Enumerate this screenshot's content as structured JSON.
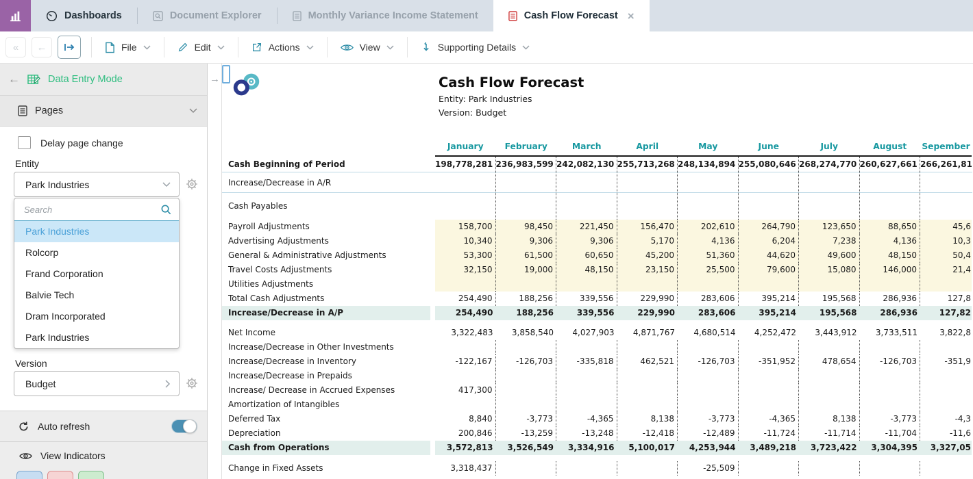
{
  "tab_bar": {
    "tabs": [
      {
        "label": "Dashboards",
        "icon": "gauge",
        "state": "normal"
      },
      {
        "label": "Document Explorer",
        "icon": "document-magnifier",
        "state": "disabled"
      },
      {
        "label": "Monthly Variance Income Statement",
        "icon": "document-lines",
        "state": "disabled"
      },
      {
        "label": "Cash Flow Forecast",
        "icon": "document-lines-red",
        "state": "active",
        "closable": true
      }
    ]
  },
  "toolbar": {
    "nav": {
      "first": "«",
      "back": "←",
      "forward": "→"
    },
    "menus": [
      {
        "label": "File",
        "icon": "page"
      },
      {
        "label": "Edit",
        "icon": "pencil"
      },
      {
        "label": "Actions",
        "icon": "square-arrow-out"
      },
      {
        "label": "View",
        "icon": "eye"
      },
      {
        "label": "Supporting Details",
        "icon": "arrow-down-hook"
      }
    ]
  },
  "sidebar": {
    "mode_label": "Data Entry Mode",
    "pages_label": "Pages",
    "delay_label": "Delay page change",
    "delay_checked": false,
    "entity_label": "Entity",
    "entity_value": "Park Industries",
    "search_placeholder": "Search",
    "entity_options": [
      {
        "label": "Park Industries",
        "selected": true
      },
      {
        "label": "Rolcorp",
        "selected": false
      },
      {
        "label": "Frand Corporation",
        "selected": false
      },
      {
        "label": "Balvie Tech",
        "selected": false
      },
      {
        "label": "Dram Incorporated",
        "selected": false
      },
      {
        "label": "Park Industries",
        "selected": false
      }
    ],
    "version_label": "Version",
    "version_value": "Budget",
    "auto_refresh_label": "Auto refresh",
    "auto_refresh_on": true,
    "view_indicators_label": "View Indicators"
  },
  "report": {
    "title": "Cash Flow Forecast",
    "entity_line": "Entity: Park Industries",
    "version_line": "Version: Budget",
    "months": [
      "January",
      "February",
      "March",
      "April",
      "May",
      "June",
      "July",
      "August",
      "Sepember"
    ],
    "rows": [
      {
        "label": "Cash Beginning of Period",
        "bold": true,
        "dotted": true,
        "bline": true,
        "h": 23,
        "values": [
          "198,778,281",
          "236,983,599",
          "242,082,130",
          "255,713,268",
          "248,134,894",
          "255,080,646",
          "268,274,770",
          "260,627,661",
          "266,261,81"
        ]
      },
      {
        "label": "Increase/Decrease in A/R",
        "dotted": true,
        "bline": true,
        "h": 30,
        "values": []
      },
      {
        "label": "Cash Payables",
        "dotted": true,
        "h": 39,
        "values": []
      },
      {
        "label": "Payroll Adjustments",
        "bg": "yellow",
        "dotted": true,
        "values": [
          "158,700",
          "98,450",
          "221,450",
          "156,470",
          "202,610",
          "264,790",
          "123,650",
          "88,650",
          "45,6"
        ]
      },
      {
        "label": "Advertising Adjustments",
        "bg": "yellow",
        "dotted": true,
        "values": [
          "10,340",
          "9,306",
          "9,306",
          "5,170",
          "4,136",
          "6,204",
          "7,238",
          "4,136",
          "10,3"
        ]
      },
      {
        "label": "General & Administrative Adjustments",
        "bg": "yellow",
        "dotted": true,
        "values": [
          "53,300",
          "61,500",
          "60,650",
          "45,200",
          "51,360",
          "44,620",
          "49,600",
          "48,150",
          "50,4"
        ]
      },
      {
        "label": "Travel Costs Adjustments",
        "bg": "yellow",
        "dotted": true,
        "values": [
          "32,150",
          "19,000",
          "48,150",
          "23,150",
          "25,500",
          "79,600",
          "15,080",
          "146,000",
          "21,4"
        ]
      },
      {
        "label": "Utilities Adjustments",
        "bg": "yellow",
        "dotted": true,
        "values": []
      },
      {
        "label": "Total Cash Adjustments",
        "dotted": true,
        "values": [
          "254,490",
          "188,256",
          "339,556",
          "229,990",
          "283,606",
          "395,214",
          "195,568",
          "286,936",
          "127,8"
        ]
      },
      {
        "label": "Increase/Decrease in A/P",
        "bg": "teal",
        "bold": true,
        "values": [
          "254,490",
          "188,256",
          "339,556",
          "229,990",
          "283,606",
          "395,214",
          "195,568",
          "286,936",
          "127,82"
        ]
      },
      {
        "label": "Net Income",
        "gap": 8,
        "values": [
          "3,322,483",
          "3,858,540",
          "4,027,903",
          "4,871,767",
          "4,680,514",
          "4,252,472",
          "3,443,912",
          "3,733,511",
          "3,822,8"
        ]
      },
      {
        "label": "Increase/Decrease in Other Investments",
        "dotted": true,
        "values": []
      },
      {
        "label": "Increase/Decrease in Inventory",
        "dotted": true,
        "values": [
          "-122,167",
          "-126,703",
          "-335,818",
          "462,521",
          "-126,703",
          "-351,952",
          "478,654",
          "-126,703",
          "-351,9"
        ]
      },
      {
        "label": "Increase/Decrease in Prepaids",
        "dotted": true,
        "values": []
      },
      {
        "label": "Increase/ Decrease in Accrued Expenses",
        "dotted": true,
        "values": [
          "417,300"
        ]
      },
      {
        "label": "Amortization of Intangibles",
        "dotted": true,
        "values": []
      },
      {
        "label": "Deferred Tax",
        "dotted": true,
        "values": [
          "8,840",
          "-3,773",
          "-4,365",
          "8,138",
          "-3,773",
          "-4,365",
          "8,138",
          "-3,773",
          "-4,3"
        ]
      },
      {
        "label": "Depreciation",
        "dotted": true,
        "values": [
          "200,846",
          "-13,259",
          "-13,248",
          "-12,418",
          "-12,489",
          "-11,724",
          "-11,714",
          "-11,704",
          "-11,6"
        ]
      },
      {
        "label": "Cash from Operations",
        "bg": "teal",
        "bold": true,
        "values": [
          "3,572,813",
          "3,526,549",
          "3,334,916",
          "5,100,017",
          "4,253,944",
          "3,489,218",
          "3,723,422",
          "3,304,395",
          "3,327,05"
        ]
      },
      {
        "label": "Change in Fixed Assets",
        "dotted": true,
        "gap": 9,
        "values": [
          "3,318,437",
          "",
          "",
          "",
          "-25,509"
        ]
      }
    ]
  },
  "icons": {
    "app-logo-icon": "bar-chart",
    "dashboards-icon": "gauge",
    "document-explorer-icon": "document-magnifier",
    "report-icon": "document-lines",
    "cash-flow-tab-icon": "document-lines-red",
    "close-icon": "x",
    "nav-forward-icon": "arrow-right-bar",
    "file-icon": "page",
    "edit-icon": "pencil",
    "actions-icon": "square-arrow-out",
    "view-icon": "eye",
    "supporting-details-icon": "arrow-down-hook",
    "data-entry-icon": "grid-pencil",
    "pages-icon": "document-list",
    "gear-icon": "gear",
    "search-icon": "magnifier",
    "refresh-icon": "circular-arrow",
    "eye-icon": "eye",
    "brand-logo": "infinity-swirl"
  },
  "colors": {
    "accent_teal": "#2f8ea8",
    "header_teal": "#1798a0",
    "edit_yellow": "#fbf7e0",
    "highlight_teal_row": "#e2efec",
    "selected_option_bg": "#cbe7f8",
    "selected_option_text": "#4ba1d8",
    "mode_green": "#2ebd7f",
    "brand_purple": "#9a63a6",
    "tab_red": "#cf3b3b",
    "toggle_on": "#4b90b3"
  }
}
